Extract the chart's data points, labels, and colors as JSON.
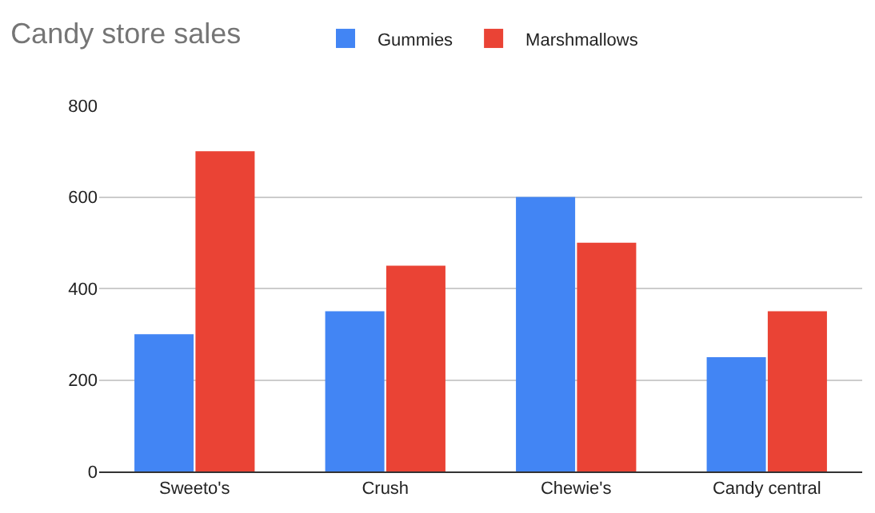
{
  "chart_data": {
    "type": "bar",
    "title": "Candy store sales",
    "categories": [
      "Sweeto's",
      "Crush",
      "Chewie's",
      "Candy central"
    ],
    "series": [
      {
        "name": "Gummies",
        "color": "#4285f4",
        "values": [
          300,
          350,
          600,
          250
        ]
      },
      {
        "name": "Marshmallows",
        "color": "#ea4335",
        "values": [
          700,
          450,
          500,
          350
        ]
      }
    ],
    "ylim": [
      0,
      800
    ],
    "yticks": [
      0,
      200,
      400,
      600,
      800
    ],
    "grid": "y",
    "legend": "top"
  }
}
